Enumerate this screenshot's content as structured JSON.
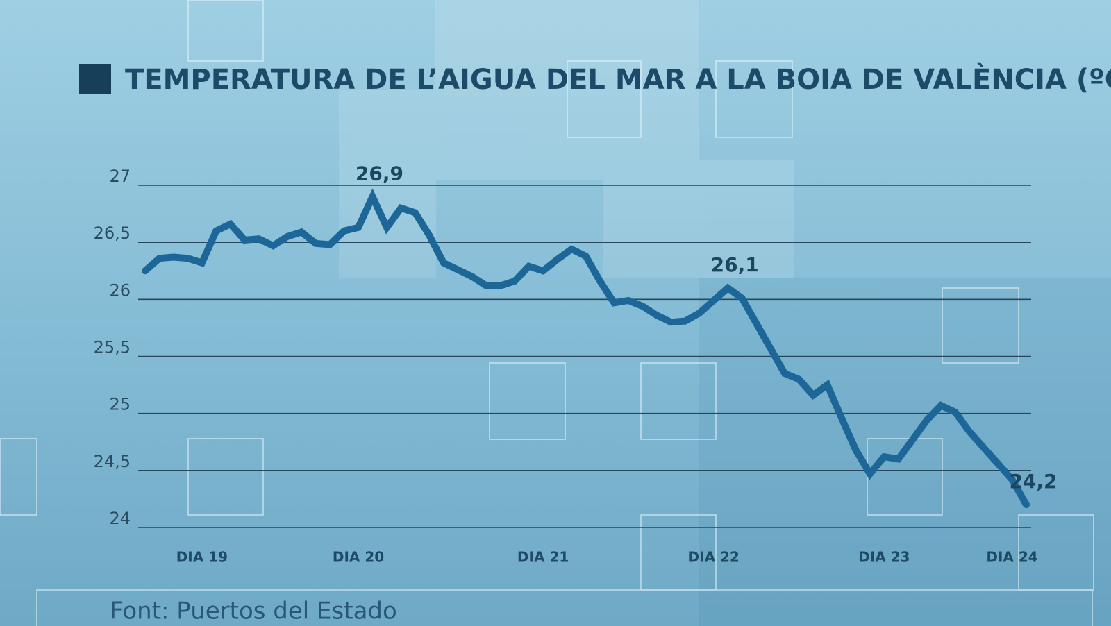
{
  "chart_data": {
    "type": "line",
    "title": "TEMPERATURA DE L’AIGUA DEL MAR A LA BOIA DE VALÈNCIA (ºC)",
    "source": "Font: Puertos del Estado",
    "categories": [
      null,
      null,
      null,
      null,
      "DIA 19",
      null,
      null,
      null,
      null,
      null,
      null,
      null,
      null,
      null,
      null,
      "DIA 20",
      null,
      null,
      null,
      null,
      null,
      null,
      null,
      null,
      null,
      null,
      null,
      null,
      "DIA 21",
      null,
      null,
      null,
      null,
      null,
      null,
      null,
      null,
      null,
      null,
      null,
      "DIA 22",
      null,
      null,
      null,
      null,
      null,
      null,
      null,
      null,
      null,
      null,
      null,
      "DIA 23",
      null,
      null,
      null,
      null,
      null,
      null,
      null,
      null,
      "DIA 24",
      null
    ],
    "series": [
      {
        "color": "#1d6798",
        "values": [
          26.25,
          26.36,
          26.37,
          26.36,
          26.32,
          26.6,
          26.66,
          26.52,
          26.53,
          26.47,
          26.55,
          26.59,
          26.49,
          26.48,
          26.6,
          26.63,
          26.9,
          26.63,
          26.8,
          26.76,
          26.56,
          26.32,
          26.26,
          26.2,
          26.12,
          26.12,
          26.16,
          26.29,
          26.25,
          26.35,
          26.44,
          26.38,
          26.16,
          25.97,
          25.99,
          25.94,
          25.86,
          25.8,
          25.81,
          25.88,
          25.99,
          26.1,
          26.01,
          25.79,
          25.57,
          25.35,
          25.3,
          25.16,
          25.25,
          24.96,
          24.68,
          24.47,
          24.62,
          24.6,
          24.77,
          24.94,
          25.07,
          25.01,
          24.84,
          24.7,
          24.56,
          24.42,
          24.2
        ],
        "value_labels": [
          null,
          null,
          null,
          null,
          null,
          null,
          null,
          null,
          null,
          null,
          null,
          null,
          null,
          null,
          null,
          null,
          "26,9",
          null,
          null,
          null,
          null,
          null,
          null,
          null,
          null,
          null,
          null,
          null,
          null,
          null,
          null,
          null,
          null,
          null,
          null,
          null,
          null,
          null,
          null,
          null,
          null,
          "26,1",
          null,
          null,
          null,
          null,
          null,
          null,
          null,
          null,
          null,
          null,
          null,
          null,
          null,
          null,
          null,
          null,
          null,
          null,
          null,
          null,
          "24,2"
        ]
      }
    ],
    "ylim": [
      24,
      27
    ],
    "yticks": [
      24,
      {
        "value": 24.5,
        "label": "24,5"
      },
      25,
      {
        "value": 25.5,
        "label": "25,5"
      },
      26,
      {
        "value": 26.5,
        "label": "26,5"
      },
      27
    ],
    "grid": true
  }
}
